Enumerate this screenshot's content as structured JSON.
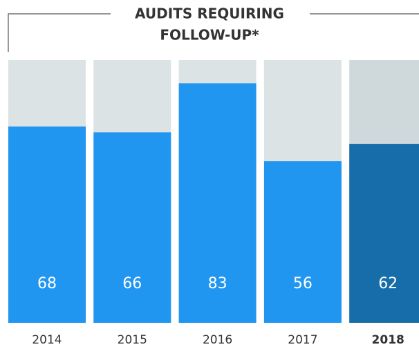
{
  "chart_data": {
    "type": "bar",
    "title": [
      "AUDITS REQUIRING",
      "FOLLOW-UP*"
    ],
    "categories": [
      "2014",
      "2015",
      "2016",
      "2017",
      "2018"
    ],
    "values": [
      68,
      66,
      83,
      56,
      62
    ],
    "color": "#2196f0",
    "track_color": "#dce3e5",
    "highlight": {
      "category": "2018",
      "color": "#166da9",
      "track_color": "#cfd9db"
    },
    "ylim": [
      0,
      91
    ]
  }
}
